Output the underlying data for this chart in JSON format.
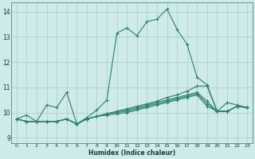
{
  "xlabel": "Humidex (Indice chaleur)",
  "xlim": [
    -0.5,
    23.5
  ],
  "ylim": [
    8.8,
    14.35
  ],
  "yticks": [
    9,
    10,
    11,
    12,
    13,
    14
  ],
  "xticks": [
    0,
    1,
    2,
    3,
    4,
    5,
    6,
    7,
    8,
    9,
    10,
    11,
    12,
    13,
    14,
    15,
    16,
    17,
    18,
    19,
    20,
    21,
    22,
    23
  ],
  "bg_color": "#ceeaea",
  "grid_color": "#afd0d0",
  "line_color": "#2e7f6e",
  "lines": [
    [
      9.75,
      9.9,
      9.65,
      10.3,
      10.2,
      10.8,
      9.55,
      9.8,
      10.1,
      10.5,
      13.15,
      13.35,
      13.05,
      13.6,
      13.7,
      14.1,
      13.3,
      12.7,
      11.4,
      11.1,
      10.05,
      10.4,
      10.3,
      10.2
    ],
    [
      9.75,
      9.65,
      9.65,
      9.65,
      9.65,
      9.75,
      9.55,
      9.75,
      9.85,
      9.95,
      10.05,
      10.15,
      10.25,
      10.35,
      10.45,
      10.6,
      10.7,
      10.85,
      11.05,
      11.05,
      10.05,
      10.05,
      10.25,
      10.2
    ],
    [
      9.75,
      9.65,
      9.65,
      9.65,
      9.65,
      9.75,
      9.55,
      9.75,
      9.85,
      9.95,
      10.05,
      10.1,
      10.2,
      10.3,
      10.4,
      10.5,
      10.6,
      10.7,
      10.8,
      10.45,
      10.05,
      10.05,
      10.25,
      10.2
    ],
    [
      9.75,
      9.65,
      9.65,
      9.65,
      9.65,
      9.75,
      9.55,
      9.75,
      9.85,
      9.95,
      10.0,
      10.05,
      10.15,
      10.25,
      10.35,
      10.45,
      10.55,
      10.65,
      10.75,
      10.35,
      10.05,
      10.05,
      10.25,
      10.2
    ],
    [
      9.75,
      9.65,
      9.65,
      9.65,
      9.65,
      9.75,
      9.55,
      9.75,
      9.85,
      9.9,
      9.95,
      10.0,
      10.1,
      10.2,
      10.3,
      10.4,
      10.5,
      10.6,
      10.7,
      10.25,
      10.05,
      10.05,
      10.25,
      10.2
    ]
  ]
}
